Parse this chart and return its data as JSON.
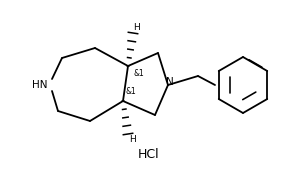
{
  "background_color": "#ffffff",
  "line_color": "#000000",
  "line_width": 1.3,
  "font_size": 7.5,
  "hcl_text": "HCl",
  "hn_label": "HN",
  "n_label": "N",
  "stereo_label": "&1",
  "h_label": "H"
}
